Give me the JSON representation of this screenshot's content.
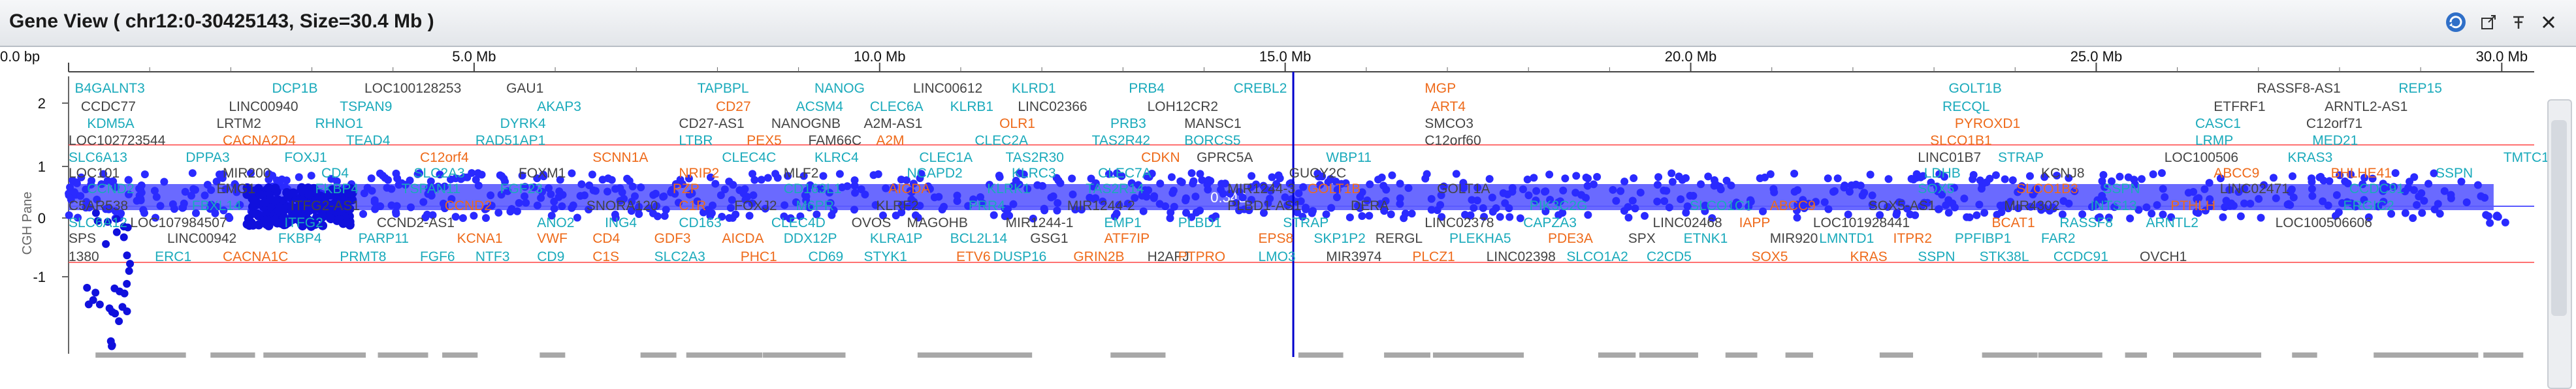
{
  "window": {
    "title": "Gene View ( chr12:0-30425143, Size=30.4 Mb )",
    "buttons": [
      {
        "name": "refresh-icon",
        "glyph": "⟳"
      },
      {
        "name": "export-icon",
        "glyph": "⤢"
      },
      {
        "name": "pin-icon",
        "glyph": "⊤"
      },
      {
        "name": "close-icon",
        "glyph": "✕"
      }
    ]
  },
  "ruler": {
    "ticks": [
      {
        "label": "0.0 bp",
        "mb": 0
      },
      {
        "label": "5.0 Mb",
        "mb": 5
      },
      {
        "label": "10.0 Mb",
        "mb": 10
      },
      {
        "label": "15.0 Mb",
        "mb": 15
      },
      {
        "label": "20.0 Mb",
        "mb": 20
      },
      {
        "label": "25.0 Mb",
        "mb": 25
      },
      {
        "label": "30.0 Mb",
        "mb": 30
      }
    ],
    "max_mb": 30.4,
    "cursor_mb": 15.1
  },
  "cgh": {
    "axis_label": "CGH Pane",
    "y_ticks": [
      "2",
      "1",
      "0",
      "-1"
    ],
    "segment_label": "0.542",
    "colors": {
      "points": "#2a2aff",
      "segment": "#5a5aff",
      "gain_line": "#ff4444",
      "loss_line": "#2222ff",
      "cursor": "#0000cc"
    }
  },
  "gene_rows": [
    [
      [
        "B4GALNT3",
        0.1,
        "c"
      ],
      [
        "DCP1B",
        3.3,
        "c"
      ],
      [
        "LOC100128253",
        4.8,
        "k"
      ],
      [
        "GAU1",
        7.1,
        "k"
      ],
      [
        "TAPBPL",
        10.2,
        "c"
      ],
      [
        "NANOG",
        12.1,
        "c"
      ],
      [
        "LINC00612",
        13.7,
        "k"
      ],
      [
        "KLRD1",
        15.3,
        "c"
      ],
      [
        "PRB4",
        17.2,
        "c"
      ],
      [
        "CREBL2",
        18.9,
        "c"
      ],
      [
        "MGP",
        22.0,
        "o"
      ],
      [
        "GOLT1B",
        30.5,
        "c"
      ],
      [
        "RASSF8-AS1",
        35.5,
        "k"
      ],
      [
        "REP15",
        37.8,
        "c"
      ]
    ],
    [
      [
        "CCDC77",
        0.2,
        "k"
      ],
      [
        "LINC00940",
        2.6,
        "k"
      ],
      [
        "TSPAN9",
        4.4,
        "c"
      ],
      [
        "AKAP3",
        7.6,
        "c"
      ],
      [
        "CD27",
        10.5,
        "o"
      ],
      [
        "ACSM4",
        11.8,
        "c"
      ],
      [
        "CLEC6A",
        13.0,
        "c"
      ],
      [
        "KLRB1",
        14.3,
        "c"
      ],
      [
        "LINC02366",
        15.4,
        "k"
      ],
      [
        "LOH12CR2",
        17.5,
        "k"
      ],
      [
        "ART4",
        22.1,
        "o"
      ],
      [
        "RECQL",
        30.4,
        "c"
      ],
      [
        "ETFRF1",
        34.8,
        "k"
      ],
      [
        "ARNTL2-AS1",
        36.6,
        "k"
      ]
    ],
    [
      [
        "KDM5A",
        0.3,
        "c"
      ],
      [
        "LRTM2",
        2.4,
        "k"
      ],
      [
        "RHNO1",
        4.0,
        "c"
      ],
      [
        "DYRK4",
        7.0,
        "c"
      ],
      [
        "CD27-AS1",
        9.9,
        "k"
      ],
      [
        "NANOGNB",
        11.4,
        "k"
      ],
      [
        "A2M-AS1",
        12.9,
        "k"
      ],
      [
        "OLR1",
        15.1,
        "o"
      ],
      [
        "PRB3",
        16.9,
        "c"
      ],
      [
        "MANSC1",
        18.1,
        "k"
      ],
      [
        "SMCO3",
        22.0,
        "k"
      ],
      [
        "PYROXD1",
        30.6,
        "o"
      ],
      [
        "CASC1",
        34.5,
        "c"
      ],
      [
        "C12orf71",
        36.3,
        "k"
      ]
    ],
    [
      [
        "LOC102723544",
        0.0,
        "k"
      ],
      [
        "CACNA2D4",
        2.5,
        "o"
      ],
      [
        "TEAD4",
        4.5,
        "c"
      ],
      [
        "RAD51AP1",
        6.6,
        "c"
      ],
      [
        "LTBR",
        9.9,
        "c"
      ],
      [
        "PEX5",
        11.0,
        "o"
      ],
      [
        "FAM66C",
        12.0,
        "k"
      ],
      [
        "A2M",
        13.1,
        "o"
      ],
      [
        "CLEC2A",
        14.7,
        "c"
      ],
      [
        "TAS2R42",
        16.6,
        "c"
      ],
      [
        "BORCS5",
        18.1,
        "c"
      ],
      [
        "C12orf60",
        22.0,
        "k"
      ],
      [
        "SLCO1B1",
        30.2,
        "o"
      ],
      [
        "LRMP",
        34.5,
        "c"
      ],
      [
        "MED21",
        36.4,
        "c"
      ]
    ],
    [
      [
        "SLC6A13",
        0.0,
        "c"
      ],
      [
        "DPPA3",
        1.9,
        "c"
      ],
      [
        "FOXJ1",
        3.5,
        "c"
      ],
      [
        "C12orf4",
        5.7,
        "o"
      ],
      [
        "SCNN1A",
        8.5,
        "o"
      ],
      [
        "CLEC4C",
        10.6,
        "c"
      ],
      [
        "KLRC4",
        12.1,
        "c"
      ],
      [
        "CLEC1A",
        13.8,
        "c"
      ],
      [
        "TAS2R30",
        15.2,
        "c"
      ],
      [
        "CDKN",
        17.4,
        "o"
      ],
      [
        "GPRC5A",
        18.3,
        "k"
      ],
      [
        "WBP11",
        20.4,
        "c"
      ],
      [
        "LINC01B7",
        30.0,
        "k"
      ],
      [
        "STRAP",
        31.3,
        "c"
      ],
      [
        "LOC100506",
        34.0,
        "k"
      ],
      [
        "KRAS3",
        36.0,
        "c"
      ],
      [
        "TMTC1",
        39.5,
        "c"
      ]
    ],
    [
      [
        "LOC101",
        0.0,
        "k"
      ],
      [
        "MIR200",
        2.5,
        "k"
      ],
      [
        "CD4",
        4.1,
        "c"
      ],
      [
        "SLC2A3",
        5.6,
        "c"
      ],
      [
        "FOXM1",
        7.3,
        "k"
      ],
      [
        "NRIP2",
        9.9,
        "o"
      ],
      [
        "MLF2",
        11.6,
        "k"
      ],
      [
        "NCAPD2",
        13.6,
        "c"
      ],
      [
        "KLRC3",
        15.3,
        "c"
      ],
      [
        "CLEC7A",
        16.7,
        "c"
      ],
      [
        "GUCY2C",
        19.8,
        "k"
      ],
      [
        "LDHB",
        30.1,
        "c"
      ],
      [
        "KCNJ8",
        32.0,
        "k"
      ],
      [
        "ABCC9",
        34.8,
        "o"
      ],
      [
        "BHLHE41",
        36.7,
        "o"
      ],
      [
        "SSPN",
        38.4,
        "c"
      ]
    ],
    [
      [
        "CCND2",
        0.3,
        "c"
      ],
      [
        "EMG1",
        2.4,
        "k"
      ],
      [
        "FKBP4",
        4.0,
        "c"
      ],
      [
        "TSPAN11",
        5.4,
        "c"
      ],
      [
        "FGF23",
        7.0,
        "c"
      ],
      [
        "PZP",
        9.8,
        "o"
      ],
      [
        "CD163L1",
        11.6,
        "c"
      ],
      [
        "AICDA",
        13.3,
        "o"
      ],
      [
        "KLRK1",
        14.9,
        "c"
      ],
      [
        "TAS2R14",
        16.5,
        "c"
      ],
      [
        "MIR1244-3",
        18.8,
        "k"
      ],
      [
        "GOLT1B",
        20.1,
        "o"
      ],
      [
        "GOLT1A",
        22.2,
        "k"
      ],
      [
        "SOX5",
        30.0,
        "c"
      ],
      [
        "SLCO1B3",
        31.6,
        "o"
      ],
      [
        "SSPN",
        33.0,
        "c"
      ],
      [
        "LINC02471",
        34.9,
        "k"
      ],
      [
        "CCDC91",
        37.0,
        "c"
      ]
    ],
    [
      [
        "C5AR538",
        0.0,
        "k"
      ],
      [
        "FBXL14",
        2.0,
        "c"
      ],
      [
        "ITFG2-AS1",
        3.6,
        "k"
      ],
      [
        "CCND2",
        6.1,
        "o"
      ],
      [
        "SNORA120",
        8.4,
        "k"
      ],
      [
        "C1R",
        9.9,
        "o"
      ],
      [
        "FOXJ2",
        10.8,
        "k"
      ],
      [
        "M6PR",
        11.8,
        "c"
      ],
      [
        "KLRF2",
        13.1,
        "k"
      ],
      [
        "PRR4",
        14.6,
        "c"
      ],
      [
        "MIR1244-2",
        16.2,
        "k"
      ],
      [
        "PLBD1-AS1",
        18.8,
        "k"
      ],
      [
        "DERA",
        20.8,
        "k"
      ],
      [
        "PIK3C2G",
        23.7,
        "c"
      ],
      [
        "SLCO1C1",
        26.3,
        "c"
      ],
      [
        "ABCC9",
        27.6,
        "o"
      ],
      [
        "SOX5-AS1",
        29.2,
        "k"
      ],
      [
        "MIR4302",
        31.4,
        "k"
      ],
      [
        "INTS13",
        32.8,
        "c"
      ],
      [
        "PTHLH",
        34.1,
        "o"
      ],
      [
        "ERGIC2",
        36.9,
        "c"
      ]
    ],
    [
      [
        "SLC6A12",
        0.0,
        "c"
      ],
      [
        "LOC107984507",
        1.0,
        "k"
      ],
      [
        "ITFG2",
        3.5,
        "c"
      ],
      [
        "CCND2-AS1",
        5.0,
        "k"
      ],
      [
        "ANO2",
        7.6,
        "c"
      ],
      [
        "ING4",
        8.7,
        "c"
      ],
      [
        "CD163",
        9.9,
        "c"
      ],
      [
        "CLEC4D",
        11.4,
        "c"
      ],
      [
        "OVOS",
        12.7,
        "k"
      ],
      [
        "MAGOHB",
        13.6,
        "k"
      ],
      [
        "MIR1244-1",
        15.2,
        "k"
      ],
      [
        "EMP1",
        16.8,
        "c"
      ],
      [
        "PLBD1",
        18.0,
        "c"
      ],
      [
        "STRAP",
        19.7,
        "c"
      ],
      [
        "LINC02378",
        22.0,
        "k"
      ],
      [
        "CAPZA3",
        23.6,
        "c"
      ],
      [
        "LINC02468",
        25.7,
        "k"
      ],
      [
        "IAPP",
        27.1,
        "o"
      ],
      [
        "LOC101928441",
        28.3,
        "k"
      ],
      [
        "BCAT1",
        31.2,
        "o"
      ],
      [
        "RASSF8",
        32.3,
        "c"
      ],
      [
        "ARNTL2",
        33.7,
        "c"
      ],
      [
        "LOC100506606",
        35.8,
        "k"
      ]
    ],
    [
      [
        "SPS",
        0.0,
        "k"
      ],
      [
        "LINC00942",
        1.6,
        "k"
      ],
      [
        "FKBP4",
        3.4,
        "c"
      ],
      [
        "PARP11",
        4.7,
        "c"
      ],
      [
        "KCNA1",
        6.3,
        "o"
      ],
      [
        "VWF",
        7.6,
        "o"
      ],
      [
        "CD4",
        8.5,
        "o"
      ],
      [
        "GDF3",
        9.5,
        "o"
      ],
      [
        "AICDA",
        10.6,
        "o"
      ],
      [
        "DDX12P",
        11.6,
        "c"
      ],
      [
        "KLRA1P",
        13.0,
        "c"
      ],
      [
        "BCL2L14",
        14.3,
        "c"
      ],
      [
        "GSG1",
        15.6,
        "k"
      ],
      [
        "ATF7IP",
        16.8,
        "o"
      ],
      [
        "EPS8",
        19.3,
        "o"
      ],
      [
        "SKP1P2",
        20.2,
        "c"
      ],
      [
        "RERGL",
        21.2,
        "k"
      ],
      [
        "PLEKHA5",
        22.4,
        "c"
      ],
      [
        "PDE3A",
        24.0,
        "o"
      ],
      [
        "SPX",
        25.3,
        "k"
      ],
      [
        "ETNK1",
        26.2,
        "c"
      ],
      [
        "MIR920",
        27.6,
        "k"
      ],
      [
        "LMNTD1",
        28.4,
        "c"
      ],
      [
        "ITPR2",
        29.6,
        "o"
      ],
      [
        "PPFIBP1",
        30.6,
        "c"
      ],
      [
        "FAR2",
        32.0,
        "c"
      ]
    ],
    [
      [
        "1380",
        0.0,
        "k"
      ],
      [
        "ERC1",
        1.4,
        "c"
      ],
      [
        "CACNA1C",
        2.5,
        "o"
      ],
      [
        "PRMT8",
        4.4,
        "c"
      ],
      [
        "FGF6",
        5.7,
        "c"
      ],
      [
        "NTF3",
        6.6,
        "c"
      ],
      [
        "CD9",
        7.6,
        "c"
      ],
      [
        "C1S",
        8.5,
        "o"
      ],
      [
        "SLC2A3",
        9.5,
        "c"
      ],
      [
        "PHC1",
        10.9,
        "o"
      ],
      [
        "CD69",
        12.0,
        "c"
      ],
      [
        "STYK1",
        12.9,
        "c"
      ],
      [
        "ETV6",
        14.4,
        "o"
      ],
      [
        "DUSP16",
        15.0,
        "c"
      ],
      [
        "GRIN2B",
        16.3,
        "o"
      ],
      [
        "H2AFJ",
        17.5,
        "k"
      ],
      [
        "PTPRO",
        18.0,
        "o"
      ],
      [
        "LMO3",
        19.3,
        "c"
      ],
      [
        "MIR3974",
        20.4,
        "k"
      ],
      [
        "PLCZ1",
        21.8,
        "o"
      ],
      [
        "LINC02398",
        23.0,
        "k"
      ],
      [
        "SLCO1A2",
        24.3,
        "c"
      ],
      [
        "C2CD5",
        25.6,
        "c"
      ],
      [
        "SOX5",
        27.3,
        "o"
      ],
      [
        "KRAS",
        28.9,
        "o"
      ],
      [
        "SSPN",
        30.0,
        "c"
      ],
      [
        "STK38L",
        31.0,
        "c"
      ],
      [
        "CCDC91",
        32.2,
        "c"
      ],
      [
        "OVCH1",
        33.6,
        "k"
      ]
    ]
  ]
}
